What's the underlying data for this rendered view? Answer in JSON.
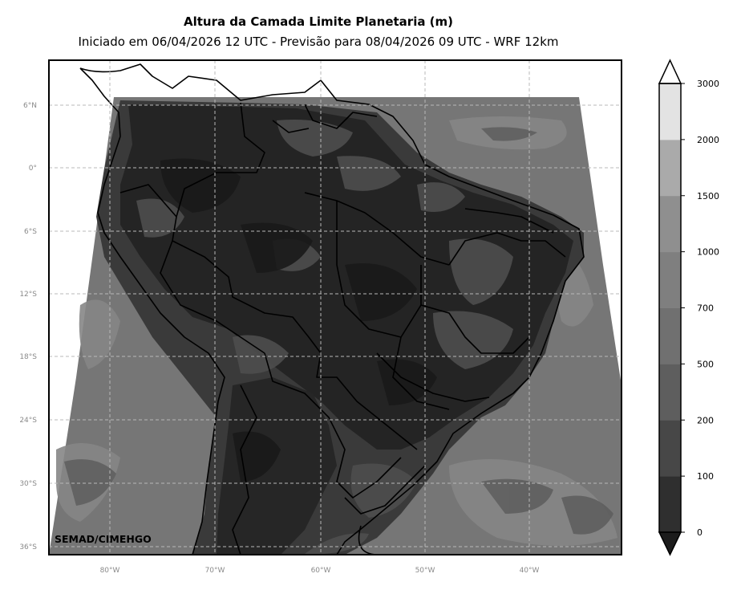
{
  "title": "Altura da Camada Limite Planetaria (m)",
  "subtitle": "Iniciado em 06/04/2026 12 UTC - Previsão para 08/04/2026 09 UTC - WRF 12km",
  "credit": "SEMAD/CIMEHGO",
  "lat_labels": [
    "6°N",
    "0°",
    "6°S",
    "12°S",
    "18°S",
    "24°S",
    "30°S",
    "36°S"
  ],
  "lon_labels": [
    "80°W",
    "70°W",
    "60°W",
    "50°W",
    "40°W"
  ],
  "colorbar": {
    "levels": [
      "0",
      "100",
      "200",
      "500",
      "700",
      "1000",
      "1500",
      "2000",
      "3000"
    ],
    "colors": [
      "#1c1c1c",
      "#2f2f2f",
      "#474747",
      "#5e5e5e",
      "#707070",
      "#7f7f7f",
      "#8f8f8f",
      "#aaaaaa",
      "#e3e3e3"
    ],
    "extend": "both"
  },
  "map": {
    "background": "#ffffff",
    "grid_color": "#b8b8b8",
    "ocean_color": "#767676",
    "land_dark_color": "#242424",
    "border_color": "#000000",
    "grid": true
  }
}
